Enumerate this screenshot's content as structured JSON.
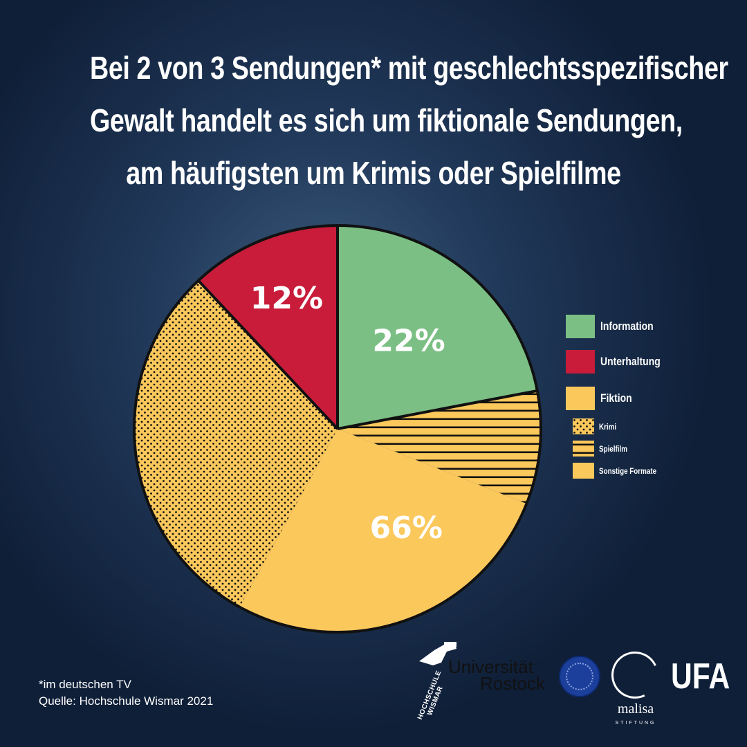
{
  "title_lines": [
    "Bei 2 von 3 Sendungen* mit geschlechtsspezifischer",
    "Gewalt handelt es sich um fiktionale Sendungen,",
    "am häufigsten um Krimis oder Spielfilme"
  ],
  "chart_data": {
    "type": "pie",
    "slices": [
      {
        "name": "Information",
        "value": 22,
        "label": "22%",
        "color": "#7bbf84",
        "pattern": "solid"
      },
      {
        "name": "Fiktion",
        "value": 66,
        "label": "66%",
        "color": "#fbc85c",
        "pattern": "solid",
        "sub_segments": [
          {
            "name": "Spielfilm",
            "value": 9,
            "pattern": "stripes"
          },
          {
            "name": "Sonstige Formate",
            "value": 27,
            "pattern": "solid"
          },
          {
            "name": "Krimi",
            "value": 30,
            "pattern": "dots"
          }
        ]
      },
      {
        "name": "Unterhaltung",
        "value": 12,
        "label": "12%",
        "color": "#c81c3a",
        "pattern": "solid"
      }
    ],
    "legend_position": "right"
  },
  "legend": {
    "main": [
      {
        "label": "Information",
        "color": "#7bbf84",
        "pattern": "solid"
      },
      {
        "label": "Unterhaltung",
        "color": "#c81c3a",
        "pattern": "solid"
      },
      {
        "label": "Fiktion",
        "color": "#fbc85c",
        "pattern": "solid"
      }
    ],
    "sub": [
      {
        "label": "Krimi",
        "color": "#fbc85c",
        "pattern": "dots"
      },
      {
        "label": "Spielfilm",
        "color": "#fbc85c",
        "pattern": "stripes"
      },
      {
        "label": "Sonstige Formate",
        "color": "#fbc85c",
        "pattern": "solid"
      }
    ]
  },
  "footnote": {
    "line1": "*im deutschen TV",
    "line2": "Quelle: Hochschule Wismar 2021"
  },
  "logos": {
    "wismar": [
      "HOCHSCHULE",
      "WISMAR"
    ],
    "rostock": [
      "Universität",
      "Rostock"
    ],
    "malisa": "malisa",
    "malisa_sub": "STIFTUNG",
    "ufa": "UFA"
  }
}
